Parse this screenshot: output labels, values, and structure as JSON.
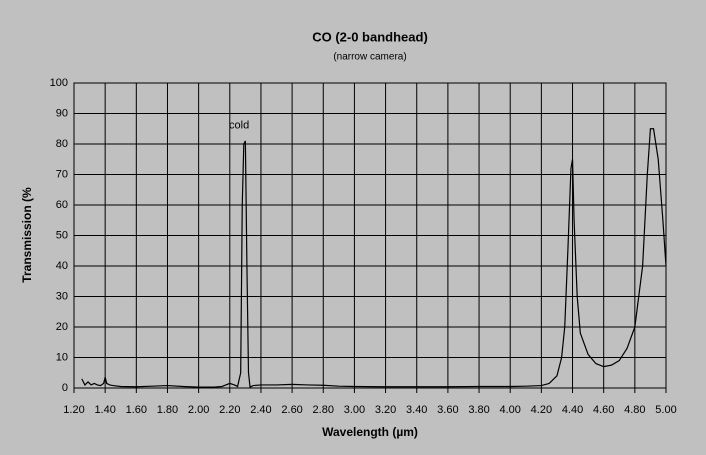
{
  "chart_data": {
    "type": "line",
    "title": "CO (2-0 bandhead)",
    "subtitle": "(narrow camera)",
    "xlabel": "Wavelength (µm)",
    "ylabel": "Transmission (%",
    "annotations": [
      {
        "text": "cold",
        "x": 2.26,
        "y": 86
      }
    ],
    "x": [
      1.25,
      1.27,
      1.29,
      1.31,
      1.33,
      1.35,
      1.37,
      1.39,
      1.4,
      1.41,
      1.43,
      1.45,
      1.5,
      1.6,
      1.7,
      1.8,
      1.9,
      2.0,
      2.1,
      2.15,
      2.2,
      2.23,
      2.25,
      2.27,
      2.28,
      2.29,
      2.3,
      2.31,
      2.32,
      2.33,
      2.35,
      2.4,
      2.5,
      2.6,
      2.7,
      2.8,
      2.9,
      3.0,
      3.2,
      3.4,
      3.6,
      3.8,
      4.0,
      4.1,
      4.2,
      4.25,
      4.3,
      4.33,
      4.35,
      4.37,
      4.39,
      4.4,
      4.41,
      4.43,
      4.45,
      4.5,
      4.55,
      4.6,
      4.65,
      4.7,
      4.75,
      4.8,
      4.85,
      4.88,
      4.9,
      4.92,
      4.95,
      4.98,
      5.0
    ],
    "series": [
      {
        "name": "CO (2-0 bandhead)",
        "color": "#000000",
        "values": [
          3,
          1,
          2,
          1,
          1.5,
          1,
          0.8,
          1.5,
          3.5,
          1.5,
          1,
          0.8,
          0.5,
          0.4,
          0.6,
          0.8,
          0.5,
          0.3,
          0.3,
          0.5,
          1.5,
          1,
          0.5,
          5,
          60,
          80,
          81,
          40,
          5,
          0.3,
          0.8,
          1,
          1,
          1.2,
          1,
          0.9,
          0.6,
          0.5,
          0.4,
          0.4,
          0.4,
          0.5,
          0.5,
          0.6,
          0.8,
          1.5,
          4,
          10,
          20,
          45,
          72,
          75,
          55,
          30,
          18,
          11,
          8,
          7,
          7.5,
          9,
          13,
          20,
          40,
          70,
          85,
          85,
          75,
          55,
          40
        ]
      }
    ],
    "xlim": [
      1.2,
      5.0
    ],
    "ylim": [
      0,
      100
    ],
    "xticks": [
      {
        "value": 1.2,
        "label": "1.20"
      },
      {
        "value": 1.4,
        "label": "1.40"
      },
      {
        "value": 1.6,
        "label": "1.60"
      },
      {
        "value": 1.8,
        "label": "1.80"
      },
      {
        "value": 2.0,
        "label": "2.00"
      },
      {
        "value": 2.2,
        "label": "2.20"
      },
      {
        "value": 2.4,
        "label": "2.40"
      },
      {
        "value": 2.6,
        "label": "2.60"
      },
      {
        "value": 2.8,
        "label": "2.80"
      },
      {
        "value": 3.0,
        "label": "3.00"
      },
      {
        "value": 3.2,
        "label": "3.20"
      },
      {
        "value": 3.4,
        "label": "3.40"
      },
      {
        "value": 3.6,
        "label": "3.60"
      },
      {
        "value": 3.8,
        "label": "3.80"
      },
      {
        "value": 4.0,
        "label": "4.00"
      },
      {
        "value": 4.2,
        "label": "4.20"
      },
      {
        "value": 4.4,
        "label": "4.40"
      },
      {
        "value": 4.6,
        "label": "4.60"
      },
      {
        "value": 4.8,
        "label": "4.80"
      },
      {
        "value": 5.0,
        "label": "5.00"
      }
    ],
    "yticks": [
      0,
      10,
      20,
      30,
      40,
      50,
      60,
      70,
      80,
      90,
      100
    ],
    "grid": true
  }
}
